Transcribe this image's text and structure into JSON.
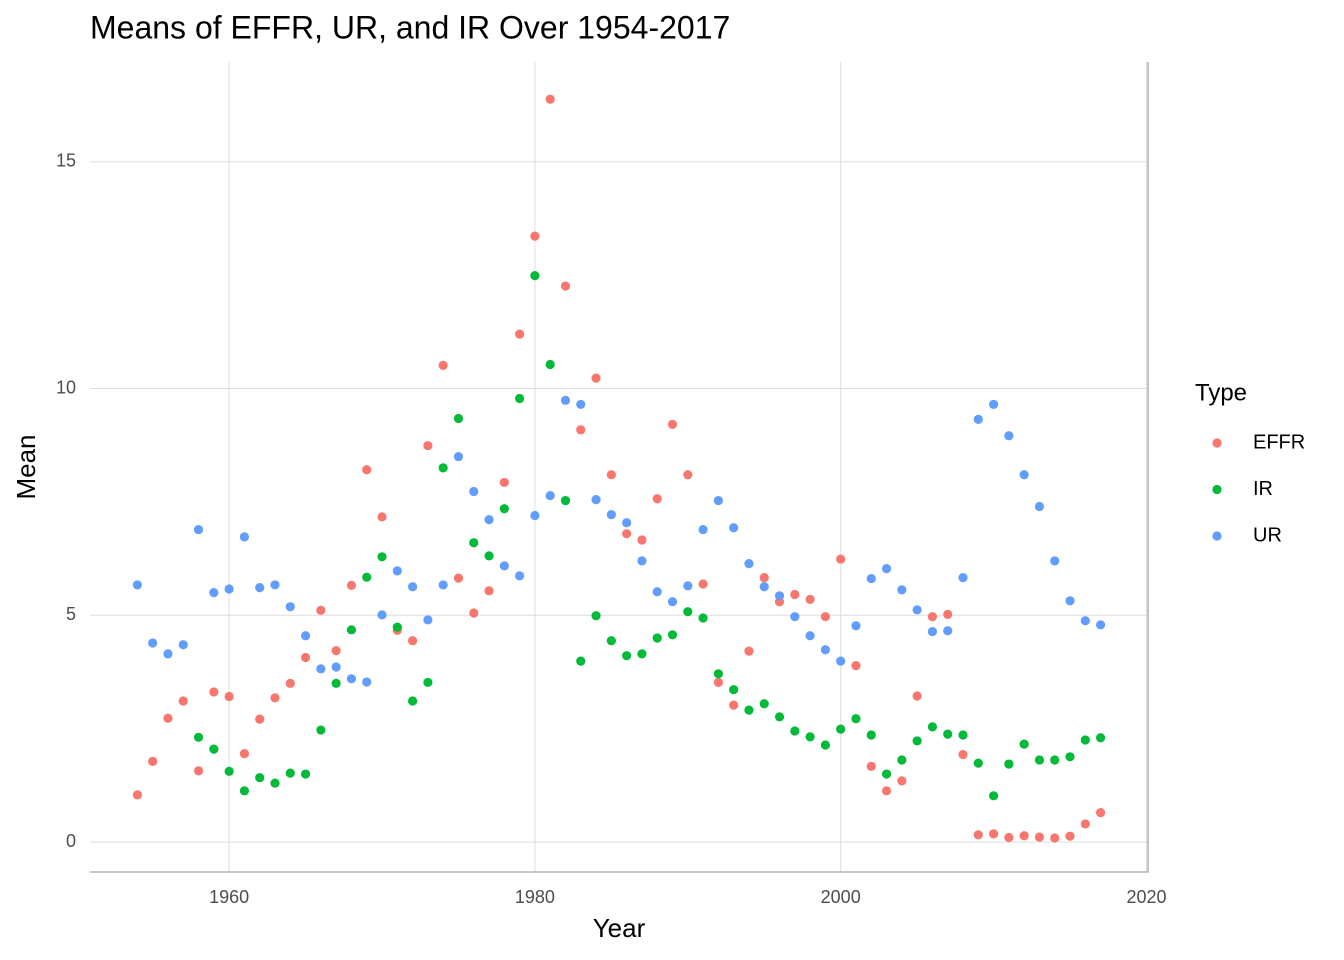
{
  "chart_data": {
    "type": "scatter",
    "title": "Means of EFFR, UR, and IR Over 1954-2017",
    "x_label": "Year",
    "y_label": "Mean",
    "legend_title": "Type",
    "legend_position": "right",
    "grid": true,
    "x": [
      1954,
      1955,
      1956,
      1957,
      1958,
      1959,
      1960,
      1961,
      1962,
      1963,
      1964,
      1965,
      1966,
      1967,
      1968,
      1969,
      1970,
      1971,
      1972,
      1973,
      1974,
      1975,
      1976,
      1977,
      1978,
      1979,
      1980,
      1981,
      1982,
      1983,
      1984,
      1985,
      1986,
      1987,
      1988,
      1989,
      1990,
      1991,
      1992,
      1993,
      1994,
      1995,
      1996,
      1997,
      1998,
      1999,
      2000,
      2001,
      2002,
      2003,
      2004,
      2005,
      2006,
      2007,
      2008,
      2009,
      2010,
      2011,
      2012,
      2013,
      2014,
      2015,
      2016,
      2017
    ],
    "series": [
      {
        "name": "EFFR",
        "color": "#F8766D",
        "values": [
          1.04,
          1.78,
          2.73,
          3.11,
          1.57,
          3.31,
          3.21,
          1.95,
          2.71,
          3.18,
          3.5,
          4.07,
          5.11,
          4.22,
          5.66,
          8.21,
          7.17,
          4.67,
          4.44,
          8.74,
          10.51,
          5.82,
          5.05,
          5.54,
          7.93,
          11.2,
          13.36,
          16.38,
          12.26,
          9.09,
          10.23,
          8.1,
          6.8,
          6.66,
          7.57,
          9.21,
          8.1,
          5.69,
          3.52,
          3.02,
          4.21,
          5.83,
          5.3,
          5.46,
          5.35,
          4.97,
          6.24,
          3.89,
          1.67,
          1.13,
          1.35,
          3.22,
          4.97,
          5.02,
          1.93,
          0.16,
          0.18,
          0.1,
          0.14,
          0.11,
          0.09,
          0.13,
          0.4,
          0.65
        ]
      },
      {
        "name": "IR",
        "color": "#00BA38",
        "values": [
          null,
          null,
          null,
          null,
          2.31,
          2.05,
          1.56,
          1.13,
          1.42,
          1.3,
          1.52,
          1.5,
          2.47,
          3.5,
          4.68,
          5.84,
          6.29,
          4.74,
          3.11,
          3.52,
          8.25,
          9.34,
          6.6,
          6.31,
          7.35,
          9.78,
          12.49,
          10.53,
          7.53,
          3.99,
          4.99,
          4.44,
          4.11,
          4.15,
          4.5,
          4.57,
          5.08,
          4.94,
          3.71,
          3.36,
          2.91,
          3.05,
          2.76,
          2.45,
          2.32,
          2.14,
          2.49,
          2.72,
          2.36,
          1.5,
          1.81,
          2.23,
          2.54,
          2.38,
          2.36,
          1.74,
          1.02,
          1.72,
          2.16,
          1.81,
          1.81,
          1.88,
          2.25,
          2.3
        ]
      },
      {
        "name": "UR",
        "color": "#619CFF",
        "values": [
          5.67,
          4.39,
          4.15,
          4.35,
          6.89,
          5.5,
          5.58,
          6.73,
          5.61,
          5.67,
          5.19,
          4.55,
          3.82,
          3.86,
          3.6,
          3.53,
          5.01,
          5.98,
          5.63,
          4.9,
          5.67,
          8.5,
          7.73,
          7.11,
          6.09,
          5.87,
          7.2,
          7.64,
          9.74,
          9.65,
          7.55,
          7.22,
          7.04,
          6.2,
          5.52,
          5.3,
          5.65,
          6.89,
          7.53,
          6.93,
          6.14,
          5.63,
          5.43,
          4.97,
          4.55,
          4.24,
          3.99,
          4.77,
          5.81,
          6.03,
          5.56,
          5.12,
          4.64,
          4.66,
          5.83,
          9.32,
          9.65,
          8.96,
          8.1,
          7.4,
          6.2,
          5.32,
          4.88,
          4.79
        ]
      }
    ],
    "xlim": [
      1950.9,
      2020.1
    ],
    "ylim": [
      -0.66,
      17.2
    ],
    "xticks": [
      1960,
      1980,
      2000,
      2020
    ],
    "yticks": [
      0,
      5,
      10,
      15
    ]
  }
}
